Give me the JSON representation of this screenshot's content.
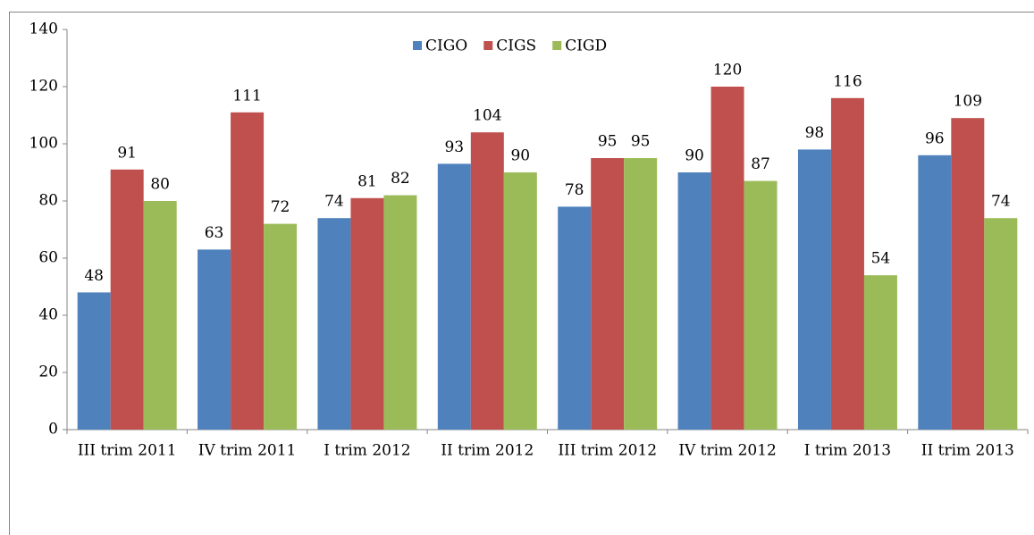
{
  "chart_data": {
    "type": "bar",
    "categories": [
      "III trim 2011",
      "IV trim 2011",
      "I trim 2012",
      "II trim 2012",
      "III trim 2012",
      "IV trim 2012",
      "I trim 2013",
      "II trim 2013"
    ],
    "series": [
      {
        "name": "CIGO",
        "color": "#4f81bd",
        "values": [
          48,
          63,
          74,
          93,
          78,
          90,
          98,
          96
        ]
      },
      {
        "name": "CIGS",
        "color": "#c0504d",
        "values": [
          91,
          111,
          81,
          104,
          95,
          120,
          116,
          109
        ]
      },
      {
        "name": "CIGD",
        "color": "#9bbb59",
        "values": [
          80,
          72,
          82,
          90,
          95,
          87,
          54,
          74
        ]
      }
    ],
    "ylim": [
      0,
      140
    ],
    "yticks": [
      0,
      20,
      40,
      60,
      80,
      100,
      120,
      140
    ],
    "grid": false,
    "legend": "top"
  }
}
